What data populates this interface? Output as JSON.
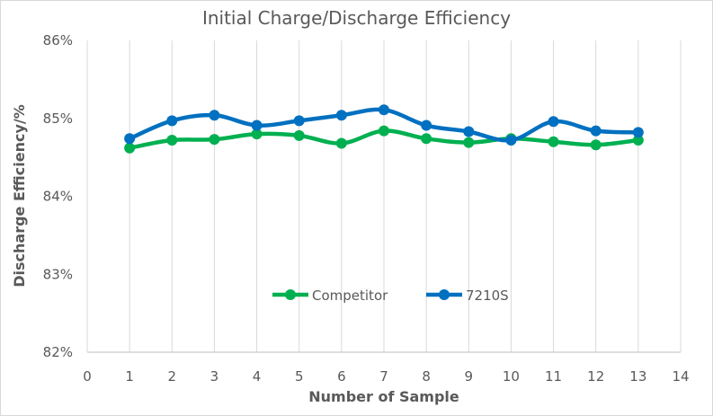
{
  "chart_data": {
    "type": "line",
    "title": "Initial Charge/Discharge Efficiency",
    "xlabel": "Number of Sample",
    "ylabel": "Discharge Efficiency/%",
    "xlim": [
      0,
      14
    ],
    "ylim": [
      82,
      86
    ],
    "x_ticks": [
      "0",
      "1",
      "2",
      "3",
      "4",
      "5",
      "6",
      "7",
      "8",
      "9",
      "10",
      "11",
      "12",
      "13",
      "14"
    ],
    "y_ticks": [
      "82%",
      "83%",
      "84%",
      "85%",
      "86%"
    ],
    "grid": "vertical",
    "legend_position": "inside-bottom-center",
    "x": [
      1,
      2,
      3,
      4,
      5,
      6,
      7,
      8,
      9,
      10,
      11,
      12,
      13
    ],
    "series": [
      {
        "name": "Competitor",
        "color": "#00b050",
        "values": [
          84.62,
          84.72,
          84.73,
          84.8,
          84.78,
          84.68,
          84.84,
          84.74,
          84.69,
          84.74,
          84.7,
          84.66,
          84.72
        ]
      },
      {
        "name": "7210S",
        "color": "#0070c0",
        "values": [
          84.74,
          84.97,
          85.04,
          84.91,
          84.97,
          85.04,
          85.11,
          84.91,
          84.83,
          84.72,
          84.96,
          84.84,
          84.82
        ]
      }
    ]
  }
}
